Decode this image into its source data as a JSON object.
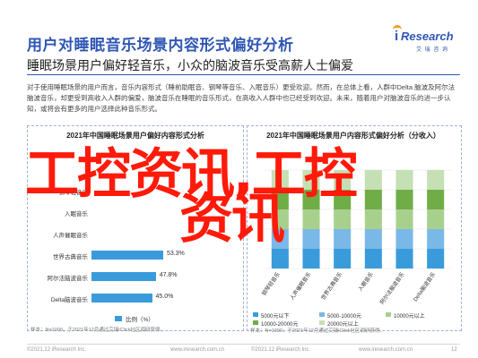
{
  "header": {
    "title": "用户对睡眠音乐场景内容形式偏好分析",
    "logo_i": "i",
    "logo_name": "Research",
    "logo_sub": "艾 瑞 咨 询",
    "logo_color": "#2f56b4",
    "logo_accent": "#f39a1e"
  },
  "subtitle": "睡眠场景用户偏好轻音乐，小众的脑波音乐受高薪人士偏爱",
  "body_text": "对于使用睡眠场景的用户而言，音乐内容形式（睡前助眠音、钢琴等音乐、入眠音乐）更受欢迎。然而，在总体上看，人群中Delta 脑波及阿尔法脑波音乐，却更受到高收入人群的偏爱，脑波音乐在睡眠的音乐形式，在高收入人群中也已经受到欢迎。未来，随着用户对脑波音乐的进一步认知，或将会有更多的用户选择此种音乐形式。",
  "left_panel": {
    "title": "2021年中国睡眠场景用户偏好内容形式分析",
    "legend": "比例（%）",
    "note": "样本：N=1000，于2021年12月通过艾瑞iClick社区调研获得。"
  },
  "right_panel": {
    "title": "2021年中国睡眠场景用户内容形式偏好分析（分收入）",
    "subtitle": "",
    "legend": [
      "5000元以下",
      "5000-10000元",
      "10000元以上",
      "10000-20000元",
      "20000元以上"
    ],
    "note": "样本：N=1000，于2021年12月通过艾瑞iClick社区调研获得。"
  },
  "watermark": {
    "line1": "工控资讯,工控",
    "line2": "资讯"
  },
  "footer": {
    "left_copy": "©2021.12 iResearch Inc.",
    "left_site": "www.iresearch.com.cn",
    "right_copy": "©2021.12 iResearch Inc.",
    "right_site": "www.iresearch.com.cn",
    "page": "12"
  },
  "chart_data": [
    {
      "type": "bar",
      "orientation": "horizontal",
      "title": "2021年中国睡眠场景用户偏好内容形式分析",
      "categories": [
        "钢琴轻音乐",
        "入眠音乐",
        "人声催眠音乐",
        "世界古典音乐",
        "阿尔法脑波音乐",
        "Delta脑波音乐"
      ],
      "values": [
        null,
        null,
        null,
        53.3,
        47.8,
        45.0
      ],
      "value_labels": [
        "",
        "",
        "",
        "53.3%",
        "47.8%",
        "45.0%"
      ],
      "series": [
        {
          "name": "比例（%）"
        }
      ],
      "color": "#3a9bdb",
      "xlim": [
        0,
        100
      ]
    },
    {
      "type": "bar",
      "orientation": "vertical",
      "stacked": true,
      "title": "2021年中国睡眠场景用户内容形式偏好分析（分收入）",
      "categories": [
        "钢琴轻音乐",
        "人声催眠音乐",
        "世界古典音乐",
        "入眠音乐",
        "阿尔法脑波音乐",
        "Delta脑波音乐"
      ],
      "series": [
        {
          "name": "5000元以下",
          "color": "#3a9bdb",
          "values": [
            20,
            20,
            20,
            20,
            20,
            20
          ]
        },
        {
          "name": "5000-10000元",
          "color": "#7ab8e8",
          "values": [
            20,
            20,
            20,
            20,
            20,
            20
          ]
        },
        {
          "name": "10000元以上",
          "color": "#a8d08d",
          "values": [
            20,
            20,
            20,
            20,
            20,
            20
          ]
        },
        {
          "name": "10000-20000元",
          "color": "#70ad47",
          "values": [
            20,
            20,
            20,
            20,
            20,
            20
          ]
        },
        {
          "name": "20000元以上",
          "color": "#c5e0b4",
          "values": [
            20,
            20,
            20,
            20,
            20,
            20
          ]
        }
      ],
      "ylim": [
        0,
        100
      ]
    }
  ]
}
